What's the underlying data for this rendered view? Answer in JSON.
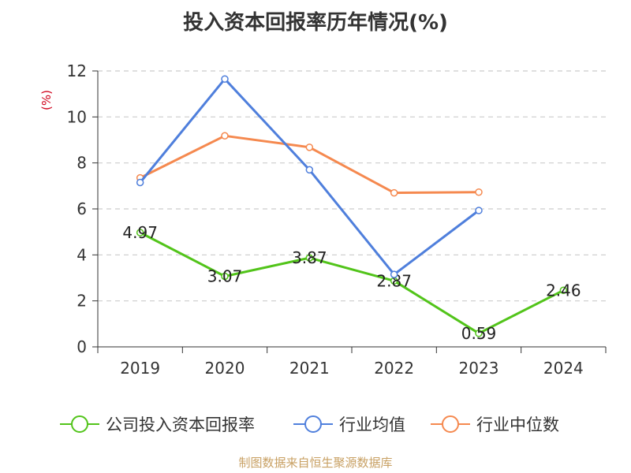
{
  "chart_data": {
    "type": "line",
    "title": "投入资本回报率历年情况(%)",
    "ylabel": "(%)",
    "xlabel": "",
    "categories": [
      "2019",
      "2020",
      "2021",
      "2022",
      "2023",
      "2024"
    ],
    "ylim": [
      0,
      12
    ],
    "yticks": [
      0,
      2,
      4,
      6,
      8,
      10,
      12
    ],
    "grid": true,
    "legend_position": "bottom",
    "series": [
      {
        "name": "公司投入资本回报率",
        "color": "#52c41a",
        "values": [
          4.97,
          3.07,
          3.87,
          2.87,
          0.59,
          2.46
        ],
        "show_labels": true
      },
      {
        "name": "行业均值",
        "color": "#4f7fdc",
        "values": [
          7.15,
          11.65,
          7.7,
          3.15,
          5.93,
          null
        ],
        "show_labels": false
      },
      {
        "name": "行业中位数",
        "color": "#f5894f",
        "values": [
          7.35,
          9.18,
          8.68,
          6.7,
          6.73,
          null
        ],
        "show_labels": false
      }
    ],
    "source": "制图数据来自恒生聚源数据库"
  }
}
